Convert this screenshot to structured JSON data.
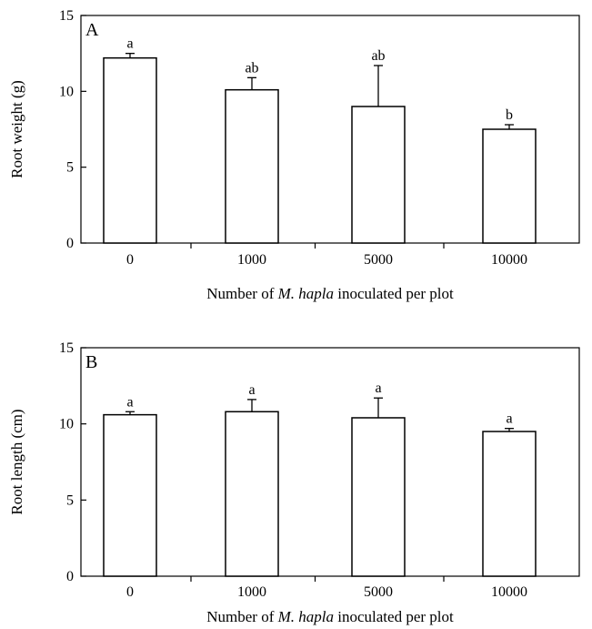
{
  "chart_data": [
    {
      "type": "bar",
      "panel_label": "A",
      "categories": [
        "0",
        "1000",
        "5000",
        "10000"
      ],
      "values": [
        12.2,
        10.1,
        9.0,
        7.5
      ],
      "error": [
        0.3,
        0.8,
        2.7,
        0.3
      ],
      "significance_labels": [
        "a",
        "ab",
        "ab",
        "b"
      ],
      "ylabel": "Root weight (g)",
      "xlabel_parts": [
        {
          "text": "Number of ",
          "italic": false
        },
        {
          "text": "M. hapla",
          "italic": true
        },
        {
          "text": " inoculated per plot",
          "italic": false
        }
      ],
      "ylim": [
        0,
        15
      ],
      "yticks": [
        "0",
        "5",
        "10",
        "15"
      ],
      "grid": false
    },
    {
      "type": "bar",
      "panel_label": "B",
      "categories": [
        "0",
        "1000",
        "5000",
        "10000"
      ],
      "values": [
        10.6,
        10.8,
        10.4,
        9.5
      ],
      "error": [
        0.2,
        0.8,
        1.3,
        0.2
      ],
      "significance_labels": [
        "a",
        "a",
        "a",
        "a"
      ],
      "ylabel": "Root length (cm)",
      "xlabel_parts": [
        {
          "text": "Number of ",
          "italic": false
        },
        {
          "text": "M. hapla",
          "italic": true
        },
        {
          "text": " inoculated per plot",
          "italic": false
        }
      ],
      "ylim": [
        0,
        15
      ],
      "yticks": [
        "0",
        "5",
        "10",
        "15"
      ],
      "grid": false
    }
  ]
}
